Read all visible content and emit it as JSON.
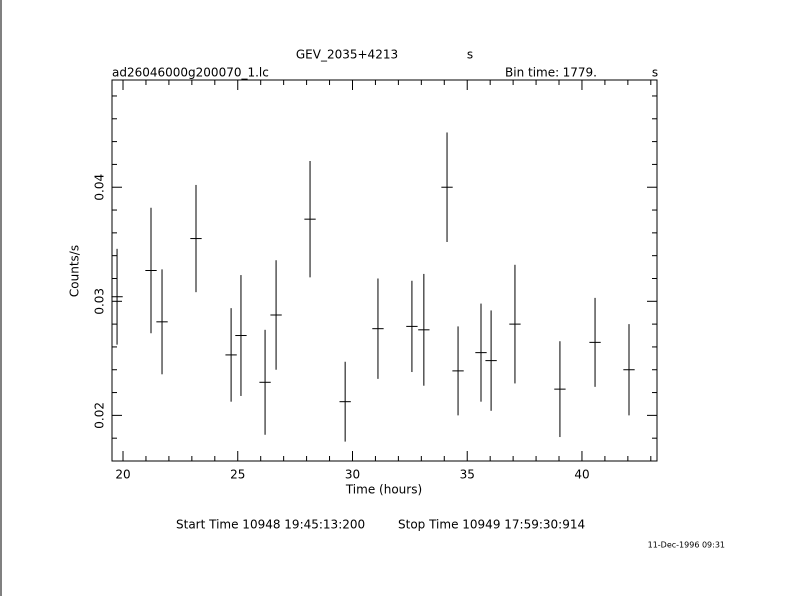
{
  "chart_data": {
    "type": "errorbar",
    "title": "GEV_2035+4213",
    "title_unit": "s",
    "file_label": "ad26046000g200070_1.lc",
    "bin_time_label": "Bin time:",
    "bin_time": "1779.",
    "bin_time_unit": "s",
    "xlabel": "Time (hours)",
    "ylabel": "Counts/s",
    "start_time": "Start Time 10948 19:45:13:200",
    "stop_time": "Stop Time 10949 17:59:30:914",
    "date": "11-Dec-1996 09:31",
    "xlim": [
      19.52,
      43.27
    ],
    "ylim": [
      0.016,
      0.0494
    ],
    "xticks": [
      20,
      25,
      30,
      35,
      40
    ],
    "yticks": [
      0.02,
      0.03,
      0.04
    ],
    "xminorticks": [
      21,
      22,
      23,
      24,
      26,
      27,
      28,
      29,
      31,
      32,
      33,
      34,
      36,
      37,
      38,
      39,
      41,
      42,
      43
    ],
    "yminorticks": [
      0.018,
      0.022,
      0.024,
      0.026,
      0.028,
      0.032,
      0.034,
      0.036,
      0.038,
      0.042,
      0.044,
      0.046,
      0.048
    ],
    "xerr": 0.247,
    "series": [
      {
        "color": "#000000",
        "x": [
          19.74,
          21.22,
          21.7,
          23.18,
          24.71,
          25.14,
          26.19,
          26.67,
          28.15,
          29.68,
          31.11,
          32.59,
          33.11,
          34.12,
          34.6,
          35.6,
          36.04,
          37.08,
          39.04,
          40.57,
          42.05
        ],
        "values": [
          0.0304,
          0.0327,
          0.0282,
          0.0355,
          0.0253,
          0.027,
          0.0229,
          0.0288,
          0.0372,
          0.0212,
          0.0276,
          0.0278,
          0.0275,
          0.04,
          0.0239,
          0.0255,
          0.0248,
          0.028,
          0.0223,
          0.0264,
          0.024
        ],
        "errors": [
          0.0042,
          0.0055,
          0.0046,
          0.0047,
          0.0041,
          0.0053,
          0.0046,
          0.0048,
          0.0051,
          0.0035,
          0.0044,
          0.004,
          0.0049,
          0.0048,
          0.0039,
          0.0043,
          0.0044,
          0.0052,
          0.0042,
          0.0039,
          0.004
        ]
      }
    ]
  }
}
